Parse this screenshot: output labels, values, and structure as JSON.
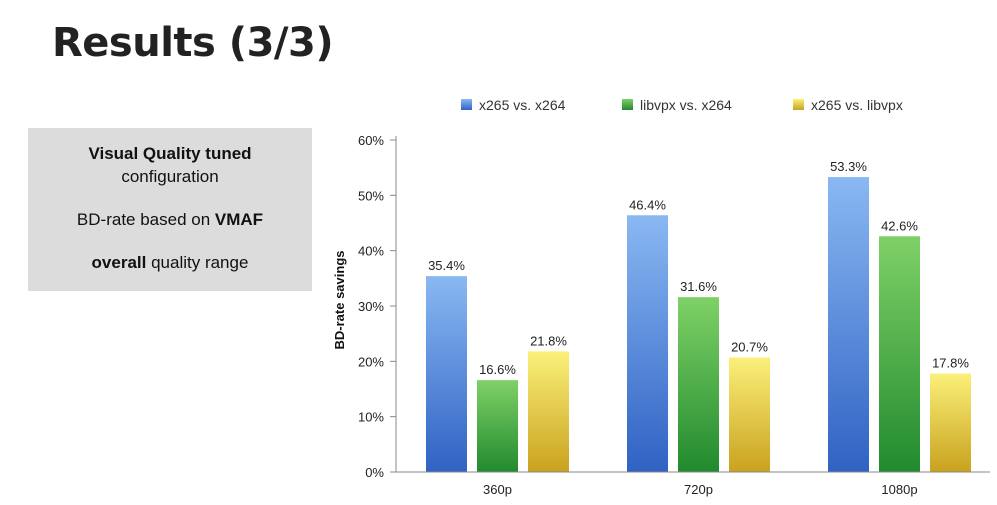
{
  "slide": {
    "title": "Results (3/3)"
  },
  "info_box": {
    "line1_bold": "Visual Quality tuned",
    "line2": "configuration",
    "line3_prefix": "BD-rate based on ",
    "line3_bold": "VMAF",
    "line4_bold": "overall",
    "line4_suffix": " quality range"
  },
  "chart_data": {
    "type": "bar",
    "categories": [
      "360p",
      "720p",
      "1080p"
    ],
    "series": [
      {
        "name": "x265 vs. x264",
        "values": [
          35.4,
          46.4,
          53.3
        ],
        "labels": [
          "35.4%",
          "46.4%",
          "53.3%"
        ],
        "color_top": "#8ab8f2",
        "color_bottom": "#2f62c4"
      },
      {
        "name": "libvpx vs. x264",
        "values": [
          16.6,
          31.6,
          42.6
        ],
        "labels": [
          "16.6%",
          "31.6%",
          "42.6%"
        ],
        "color_top": "#7fd167",
        "color_bottom": "#218a2e"
      },
      {
        "name": "x265 vs. libvpx",
        "values": [
          21.8,
          20.7,
          17.8
        ],
        "labels": [
          "21.8%",
          "20.7%",
          "17.8%"
        ],
        "color_top": "#fbf07a",
        "color_bottom": "#c9a21e"
      }
    ],
    "ylabel": "BD-rate savings",
    "xlabel": "",
    "ylim": [
      0,
      60
    ],
    "yticks": [
      0,
      10,
      20,
      30,
      40,
      50,
      60
    ],
    "ytick_labels": [
      "0%",
      "10%",
      "20%",
      "30%",
      "40%",
      "50%",
      "60%"
    ],
    "legend_position": "top",
    "grid": false
  }
}
